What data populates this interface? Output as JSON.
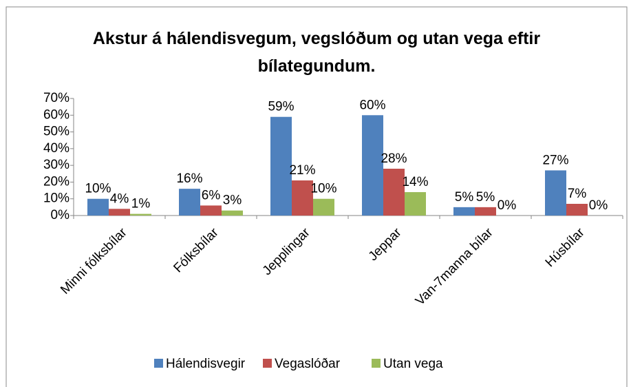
{
  "chart_data": {
    "type": "bar",
    "title": "Akstur á hálendisvegum, vegslóðum og utan vega eftir bílategundum.",
    "categories": [
      "Minni fólksbílar",
      "Fólksbílar",
      "Jepplingar",
      "Jeppar",
      "Van-7manna bílar",
      "Húsbílar"
    ],
    "series": [
      {
        "name": "Hálendisvegir",
        "color": "#4f81bd",
        "values": [
          10,
          16,
          59,
          60,
          5,
          27
        ],
        "value_labels": [
          "10%",
          "16%",
          "59%",
          "60%",
          "5%",
          "27%"
        ]
      },
      {
        "name": "Vegaslóðar",
        "color": "#c0504d",
        "values": [
          4,
          6,
          21,
          28,
          5,
          7
        ],
        "value_labels": [
          "4%",
          "6%",
          "21%",
          "28%",
          "5%",
          "7%"
        ]
      },
      {
        "name": "Utan vega",
        "color": "#9bbb59",
        "values": [
          1,
          3,
          10,
          14,
          0,
          0
        ],
        "value_labels": [
          "1%",
          "3%",
          "10%",
          "14%",
          "0%",
          "0%"
        ]
      }
    ],
    "ylim": [
      0,
      70
    ],
    "yticks": [
      {
        "value": 0,
        "label": "0%"
      },
      {
        "value": 10,
        "label": "10%"
      },
      {
        "value": 20,
        "label": "20%"
      },
      {
        "value": 30,
        "label": "30%"
      },
      {
        "value": 40,
        "label": "40%"
      },
      {
        "value": 50,
        "label": "50%"
      },
      {
        "value": 60,
        "label": "60%"
      },
      {
        "value": 70,
        "label": "70%"
      }
    ],
    "grid": false,
    "legend": "bottom"
  }
}
